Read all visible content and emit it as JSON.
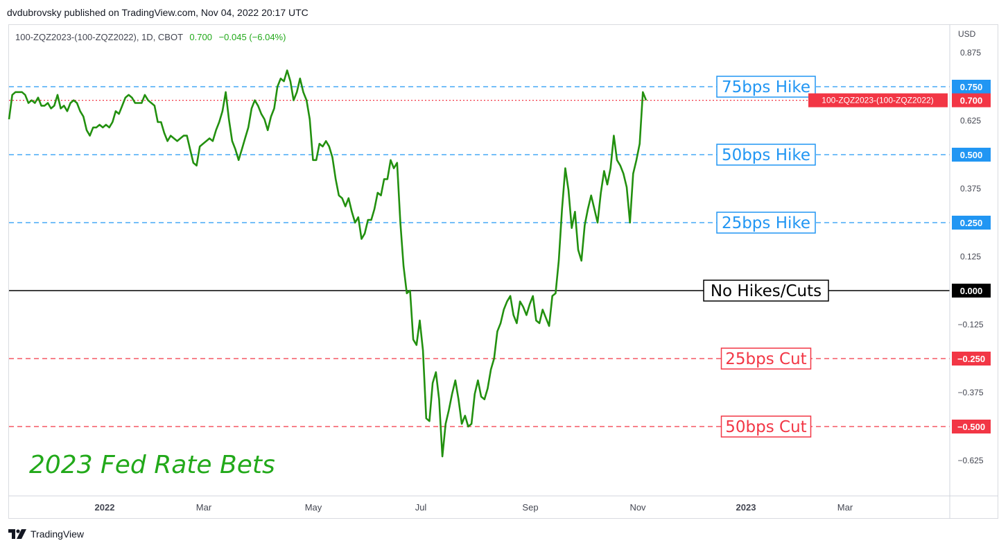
{
  "header": {
    "publisher_text": "dvdubrovsky published on TradingView.com, Nov 04, 2022 20:17 UTC",
    "symbol_label": "100-ZQZ2023-(100-ZQZ2022), 1D, CBOT",
    "last_value": "0.700",
    "change": "−0.045 (−6.04%)",
    "currency": "USD"
  },
  "footer": {
    "brand": "TradingView"
  },
  "colors": {
    "series": "#22900f",
    "hike": "#2196f3",
    "cut": "#f23645",
    "zero": "#000000",
    "title": "#22a91a",
    "price_tag": "#f23645"
  },
  "chart_data": {
    "type": "line",
    "title": "2023 Fed Rate Bets",
    "ylim": [
      -0.85,
      1.0
    ],
    "y_ticks": [
      "0.875",
      "0.625",
      "0.375",
      "0.125",
      "−0.125",
      "−0.375",
      "−0.625"
    ],
    "x_ticks": [
      "2022",
      "Mar",
      "May",
      "Jul",
      "Sep",
      "Nov",
      "2023",
      "Mar"
    ],
    "current_price_label": "100-ZQZ2023-(100-ZQZ2022)",
    "current_price_value": "0.700",
    "levels": [
      {
        "value": 0.75,
        "label": "75bps Hike",
        "tag": "0.750",
        "kind": "hike"
      },
      {
        "value": 0.5,
        "label": "50bps Hike",
        "tag": "0.500",
        "kind": "hike"
      },
      {
        "value": 0.25,
        "label": "25bps Hike",
        "tag": "0.250",
        "kind": "hike"
      },
      {
        "value": 0.0,
        "label": "No Hikes/Cuts",
        "tag": "0.000",
        "kind": "zero"
      },
      {
        "value": -0.25,
        "label": "25bps Cut",
        "tag": "−0.250",
        "kind": "cut"
      },
      {
        "value": -0.5,
        "label": "50bps Cut",
        "tag": "−0.500",
        "kind": "cut"
      }
    ],
    "series": [
      {
        "values": [
          0.63,
          0.72,
          0.73,
          0.73,
          0.73,
          0.72,
          0.69,
          0.7,
          0.69,
          0.71,
          0.68,
          0.68,
          0.69,
          0.67,
          0.68,
          0.72,
          0.67,
          0.68,
          0.66,
          0.69,
          0.7,
          0.69,
          0.66,
          0.64,
          0.59,
          0.57,
          0.6,
          0.6,
          0.61,
          0.6,
          0.61,
          0.6,
          0.62,
          0.66,
          0.65,
          0.68,
          0.71,
          0.72,
          0.71,
          0.69,
          0.69,
          0.69,
          0.72,
          0.7,
          0.69,
          0.68,
          0.62,
          0.62,
          0.58,
          0.55,
          0.57,
          0.56,
          0.55,
          0.56,
          0.57,
          0.57,
          0.52,
          0.47,
          0.46,
          0.53,
          0.54,
          0.55,
          0.56,
          0.55,
          0.59,
          0.62,
          0.66,
          0.73,
          0.63,
          0.55,
          0.52,
          0.48,
          0.52,
          0.56,
          0.6,
          0.67,
          0.7,
          0.68,
          0.65,
          0.63,
          0.59,
          0.64,
          0.67,
          0.75,
          0.78,
          0.77,
          0.81,
          0.77,
          0.7,
          0.73,
          0.78,
          0.73,
          0.7,
          0.63,
          0.48,
          0.48,
          0.54,
          0.53,
          0.55,
          0.53,
          0.49,
          0.41,
          0.35,
          0.34,
          0.31,
          0.34,
          0.29,
          0.25,
          0.27,
          0.19,
          0.21,
          0.26,
          0.26,
          0.3,
          0.36,
          0.35,
          0.41,
          0.41,
          0.48,
          0.45,
          0.47,
          0.25,
          0.09,
          -0.01,
          0.0,
          -0.18,
          -0.2,
          -0.11,
          -0.22,
          -0.47,
          -0.48,
          -0.34,
          -0.3,
          -0.4,
          -0.61,
          -0.49,
          -0.44,
          -0.38,
          -0.33,
          -0.4,
          -0.49,
          -0.46,
          -0.5,
          -0.49,
          -0.38,
          -0.33,
          -0.39,
          -0.4,
          -0.36,
          -0.29,
          -0.25,
          -0.15,
          -0.12,
          -0.07,
          -0.04,
          -0.02,
          -0.09,
          -0.12,
          -0.04,
          -0.06,
          -0.09,
          -0.05,
          -0.02,
          -0.11,
          -0.12,
          -0.07,
          -0.1,
          -0.13,
          -0.02,
          -0.01,
          0.11,
          0.3,
          0.45,
          0.37,
          0.23,
          0.29,
          0.15,
          0.11,
          0.24,
          0.3,
          0.35,
          0.3,
          0.25,
          0.36,
          0.44,
          0.39,
          0.45,
          0.57,
          0.48,
          0.46,
          0.43,
          0.38,
          0.25,
          0.43,
          0.48,
          0.54,
          0.73,
          0.7
        ]
      }
    ]
  }
}
